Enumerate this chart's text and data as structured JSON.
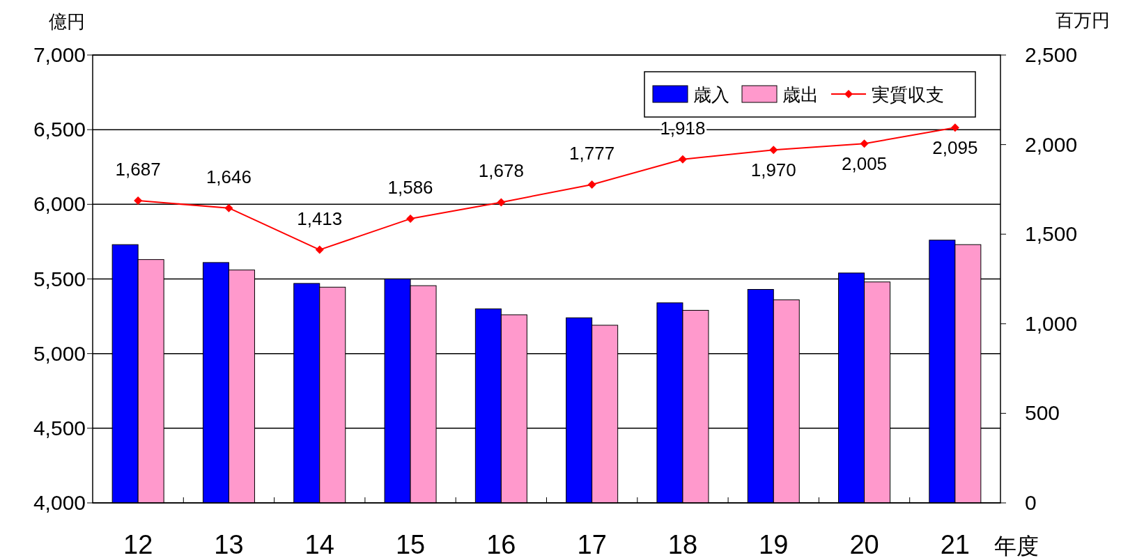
{
  "chart_data": {
    "type": "bar",
    "ylabel": "億円",
    "y2label": "百万円",
    "xlabel": "年度",
    "categories": [
      "12",
      "13",
      "14",
      "15",
      "16",
      "17",
      "18",
      "19",
      "20",
      "21"
    ],
    "series": [
      {
        "name": "歳入",
        "color": "#0000ff",
        "values": [
          5730,
          5610,
          5470,
          5500,
          5300,
          5240,
          5340,
          5430,
          5540,
          5760
        ]
      },
      {
        "name": "歳出",
        "color": "#ff99cc",
        "values": [
          5630,
          5560,
          5445,
          5455,
          5260,
          5190,
          5290,
          5360,
          5480,
          5730
        ]
      },
      {
        "name": "実質収支",
        "type": "line",
        "axis": "y2",
        "color": "#ff0000",
        "marker": "diamond",
        "values": [
          1687,
          1646,
          1413,
          1586,
          1678,
          1777,
          1918,
          1970,
          2005,
          2095
        ],
        "value_labels": [
          "1,687",
          "1,646",
          "1,413",
          "1,586",
          "1,678",
          "1,777",
          "1,918",
          "1,970",
          "2,005",
          "2,095"
        ]
      }
    ],
    "ylim": [
      4000,
      7000
    ],
    "yticks": [
      {
        "value": 4000,
        "label": "4,000"
      },
      {
        "value": 4500,
        "label": "4,500"
      },
      {
        "value": 5000,
        "label": "5,000"
      },
      {
        "value": 5500,
        "label": "5,500"
      },
      {
        "value": 6000,
        "label": "6,000"
      },
      {
        "value": 6500,
        "label": "6,500"
      },
      {
        "value": 7000,
        "label": "7,000"
      }
    ],
    "y2lim": [
      0,
      2500
    ],
    "y2ticks": [
      0,
      500,
      {
        "value": 1000,
        "label": "1,000"
      },
      {
        "value": 1500,
        "label": "1,500"
      },
      {
        "value": 2000,
        "label": "2,000"
      },
      {
        "value": 2500,
        "label": "2,500"
      }
    ],
    "grid": "y",
    "legend": "top right"
  }
}
